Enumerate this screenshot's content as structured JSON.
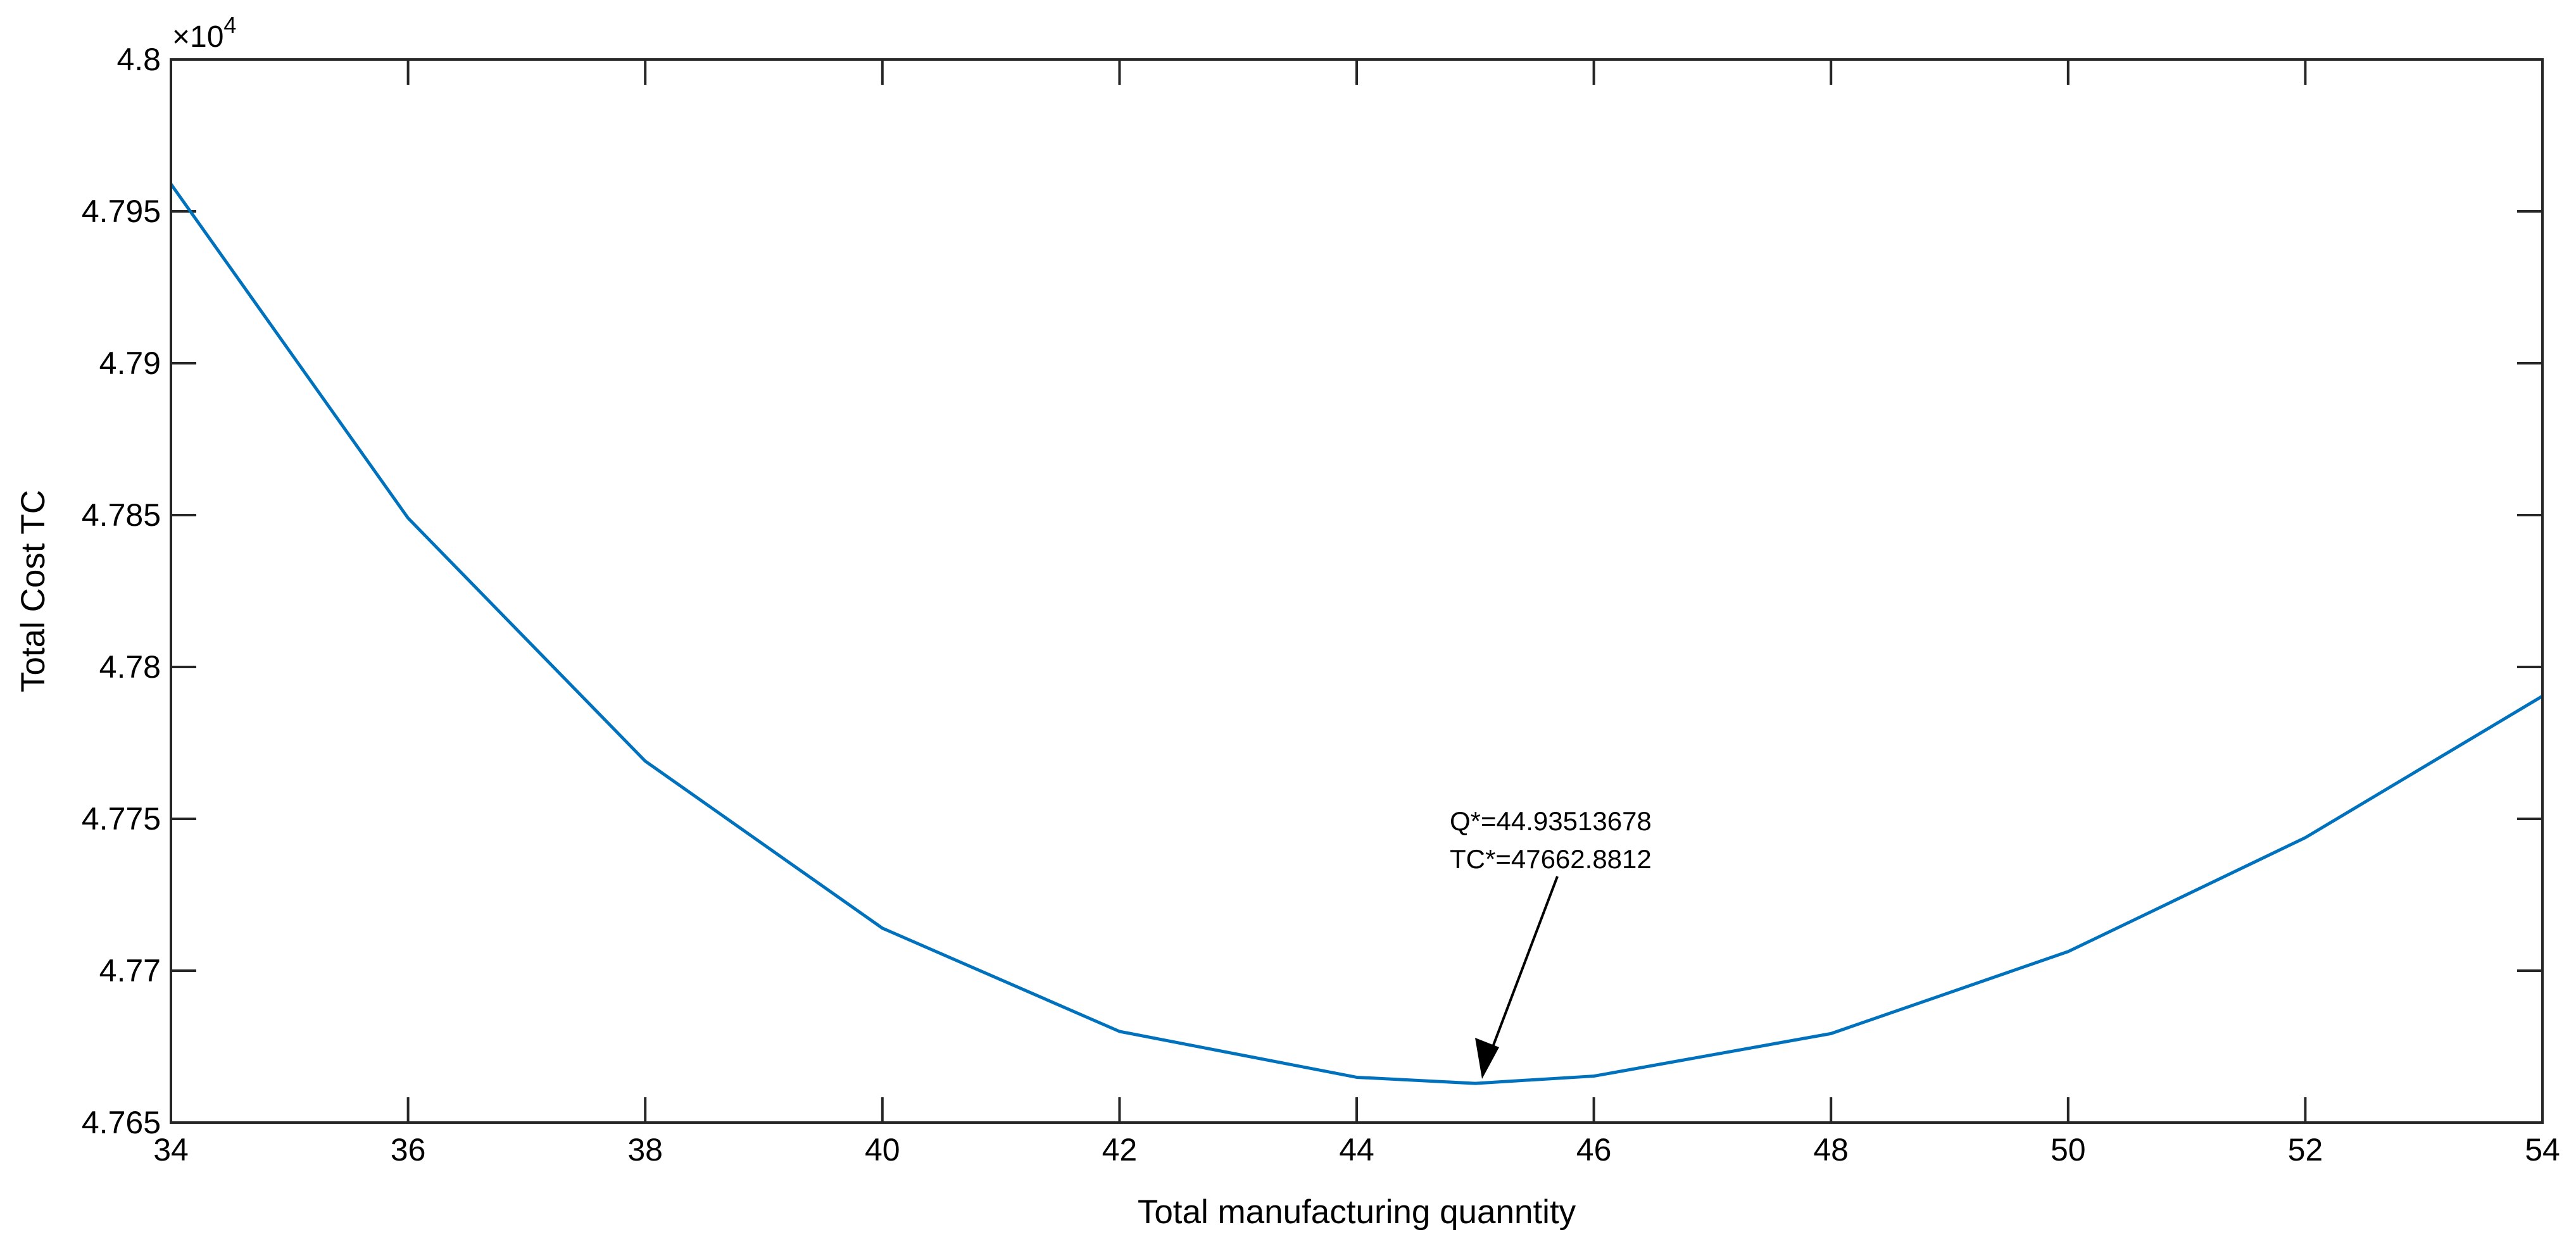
{
  "chart_data": {
    "type": "line",
    "xlabel": "Total manufacturing quanntity",
    "ylabel": "Total Cost TC",
    "xlim": [
      34,
      54
    ],
    "ylim": [
      4.765,
      4.8
    ],
    "y_exponent_label": "×10",
    "y_exponent_power": "4",
    "x_ticks": [
      "34",
      "36",
      "38",
      "40",
      "42",
      "44",
      "46",
      "48",
      "50",
      "52",
      "54"
    ],
    "y_ticks": [
      "4.765",
      "4.77",
      "4.775",
      "4.78",
      "4.785",
      "4.79",
      "4.795",
      "4.8"
    ],
    "grid": false,
    "series": [
      {
        "color": "#0072BD",
        "x": [
          34,
          36,
          38,
          40,
          42,
          44,
          45,
          46,
          48,
          50,
          52,
          54
        ],
        "y": [
          4.7959,
          4.7849,
          4.7769,
          4.7714,
          4.768,
          4.76649,
          4.76629,
          4.76653,
          4.76793,
          4.77063,
          4.77438,
          4.77904
        ]
      }
    ],
    "annotation": {
      "lines": [
        "Q*=44.93513678",
        "TC*=47662.8812"
      ],
      "point": {
        "x": 44.935,
        "y": 4.76629
      }
    }
  }
}
